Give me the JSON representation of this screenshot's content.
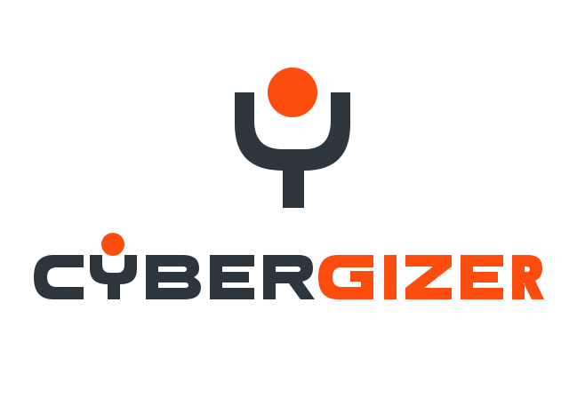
{
  "brand": {
    "name_part_1": "CYBER",
    "name_part_2": "GIZER"
  },
  "colors": {
    "dark": "#2d363d",
    "accent": "#fc4c0e",
    "background": "#ffffff"
  },
  "icons": {
    "emblem": "person-y-emblem-icon"
  }
}
